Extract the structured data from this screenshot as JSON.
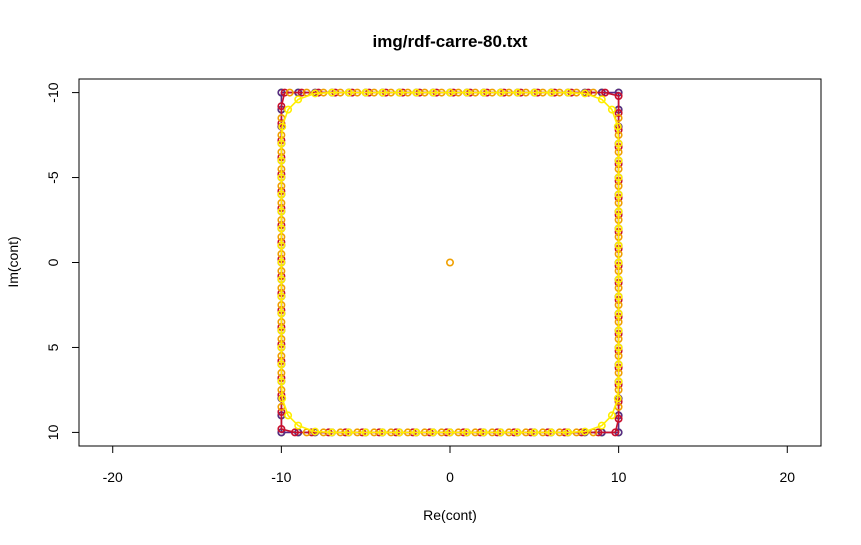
{
  "chart_data": {
    "type": "scatter",
    "title": "img/rdf-carre-80.txt",
    "xlabel": "Re(cont)",
    "ylabel": "Im(cont)",
    "xlim": [
      -22,
      22
    ],
    "ylim": [
      -10.8,
      10.8
    ],
    "y_axis_inverted": true,
    "x_ticks": [
      -20,
      -10,
      0,
      10,
      20
    ],
    "x_tick_labels": [
      "-20",
      "-10",
      "0",
      "10",
      "20"
    ],
    "y_ticks": [
      -10,
      -5,
      0,
      5,
      10
    ],
    "y_tick_labels": [
      "-10",
      "-5",
      "0",
      "5",
      "10"
    ],
    "grid": false,
    "legend": "none",
    "series": [
      {
        "color": "#2ca02c",
        "style": "points",
        "points": [
          [
            -10,
            -10
          ],
          [
            -10,
            10
          ],
          [
            10,
            -10
          ],
          [
            10,
            10
          ],
          [
            -10,
            -9
          ],
          [
            10,
            -9
          ],
          [
            -10,
            9
          ],
          [
            10,
            9
          ],
          [
            -9,
            -10
          ],
          [
            9,
            -10
          ],
          [
            -9,
            10
          ],
          [
            9,
            10
          ]
        ]
      },
      {
        "color": "#5b2a86",
        "style": "points+line",
        "points": [
          [
            -10,
            -10
          ],
          [
            -9,
            -10
          ],
          [
            -8,
            -10
          ],
          [
            -7,
            -10
          ],
          [
            -6,
            -10
          ],
          [
            -5,
            -10
          ],
          [
            -4,
            -10
          ],
          [
            -3,
            -10
          ],
          [
            -2,
            -10
          ],
          [
            -1,
            -10
          ],
          [
            0,
            -10
          ],
          [
            1,
            -10
          ],
          [
            2,
            -10
          ],
          [
            3,
            -10
          ],
          [
            4,
            -10
          ],
          [
            5,
            -10
          ],
          [
            6,
            -10
          ],
          [
            7,
            -10
          ],
          [
            8,
            -10
          ],
          [
            9,
            -10
          ],
          [
            10,
            -10
          ],
          [
            10,
            -9
          ],
          [
            10,
            -8
          ],
          [
            10,
            -7
          ],
          [
            10,
            -6
          ],
          [
            10,
            -5
          ],
          [
            10,
            -4
          ],
          [
            10,
            -3
          ],
          [
            10,
            -2
          ],
          [
            10,
            -1
          ],
          [
            10,
            0
          ],
          [
            10,
            1
          ],
          [
            10,
            2
          ],
          [
            10,
            3
          ],
          [
            10,
            4
          ],
          [
            10,
            5
          ],
          [
            10,
            6
          ],
          [
            10,
            7
          ],
          [
            10,
            8
          ],
          [
            10,
            9
          ],
          [
            10,
            10
          ],
          [
            9,
            10
          ],
          [
            8,
            10
          ],
          [
            7,
            10
          ],
          [
            6,
            10
          ],
          [
            5,
            10
          ],
          [
            4,
            10
          ],
          [
            3,
            10
          ],
          [
            2,
            10
          ],
          [
            1,
            10
          ],
          [
            0,
            10
          ],
          [
            -1,
            10
          ],
          [
            -2,
            10
          ],
          [
            -3,
            10
          ],
          [
            -4,
            10
          ],
          [
            -5,
            10
          ],
          [
            -6,
            10
          ],
          [
            -7,
            10
          ],
          [
            -8,
            10
          ],
          [
            -9,
            10
          ],
          [
            -10,
            10
          ],
          [
            -10,
            9
          ],
          [
            -10,
            8
          ],
          [
            -10,
            7
          ],
          [
            -10,
            6
          ],
          [
            -10,
            5
          ],
          [
            -10,
            4
          ],
          [
            -10,
            3
          ],
          [
            -10,
            2
          ],
          [
            -10,
            1
          ],
          [
            -10,
            0
          ],
          [
            -10,
            -1
          ],
          [
            -10,
            -2
          ],
          [
            -10,
            -3
          ],
          [
            -10,
            -4
          ],
          [
            -10,
            -5
          ],
          [
            -10,
            -6
          ],
          [
            -10,
            -7
          ],
          [
            -10,
            -8
          ],
          [
            -10,
            -9
          ]
        ]
      },
      {
        "color": "#c8102e",
        "style": "points+line",
        "points": [
          [
            -9.8,
            -10
          ],
          [
            -8.8,
            -10
          ],
          [
            -7.8,
            -10
          ],
          [
            -6.8,
            -10
          ],
          [
            -5.8,
            -10
          ],
          [
            -4.8,
            -10
          ],
          [
            -3.8,
            -10
          ],
          [
            -2.8,
            -10
          ],
          [
            -1.8,
            -10
          ],
          [
            -0.8,
            -10
          ],
          [
            0.2,
            -10
          ],
          [
            1.2,
            -10
          ],
          [
            2.2,
            -10
          ],
          [
            3.2,
            -10
          ],
          [
            4.2,
            -10
          ],
          [
            5.2,
            -10
          ],
          [
            6.2,
            -10
          ],
          [
            7.2,
            -10
          ],
          [
            8.2,
            -10
          ],
          [
            9.2,
            -10
          ],
          [
            10,
            -9.8
          ],
          [
            10,
            -8.8
          ],
          [
            10,
            -7.8
          ],
          [
            10,
            -6.8
          ],
          [
            10,
            -5.8
          ],
          [
            10,
            -4.8
          ],
          [
            10,
            -3.8
          ],
          [
            10,
            -2.8
          ],
          [
            10,
            -1.8
          ],
          [
            10,
            -0.8
          ],
          [
            10,
            0.2
          ],
          [
            10,
            1.2
          ],
          [
            10,
            2.2
          ],
          [
            10,
            3.2
          ],
          [
            10,
            4.2
          ],
          [
            10,
            5.2
          ],
          [
            10,
            6.2
          ],
          [
            10,
            7.2
          ],
          [
            10,
            8.2
          ],
          [
            10,
            9.2
          ],
          [
            9.8,
            10
          ],
          [
            8.8,
            10
          ],
          [
            7.8,
            10
          ],
          [
            6.8,
            10
          ],
          [
            5.8,
            10
          ],
          [
            4.8,
            10
          ],
          [
            3.8,
            10
          ],
          [
            2.8,
            10
          ],
          [
            1.8,
            10
          ],
          [
            0.8,
            10
          ],
          [
            -0.2,
            10
          ],
          [
            -1.2,
            10
          ],
          [
            -2.2,
            10
          ],
          [
            -3.2,
            10
          ],
          [
            -4.2,
            10
          ],
          [
            -5.2,
            10
          ],
          [
            -6.2,
            10
          ],
          [
            -7.2,
            10
          ],
          [
            -8.2,
            10
          ],
          [
            -9.2,
            10
          ],
          [
            -10,
            9.8
          ],
          [
            -10,
            8.8
          ],
          [
            -10,
            7.8
          ],
          [
            -10,
            6.8
          ],
          [
            -10,
            5.8
          ],
          [
            -10,
            4.8
          ],
          [
            -10,
            3.8
          ],
          [
            -10,
            2.8
          ],
          [
            -10,
            1.8
          ],
          [
            -10,
            0.8
          ],
          [
            -10,
            -0.2
          ],
          [
            -10,
            -1.2
          ],
          [
            -10,
            -2.2
          ],
          [
            -10,
            -3.2
          ],
          [
            -10,
            -4.2
          ],
          [
            -10,
            -5.2
          ],
          [
            -10,
            -6.2
          ],
          [
            -10,
            -7.2
          ],
          [
            -10,
            -8.2
          ],
          [
            -10,
            -9.2
          ]
        ]
      },
      {
        "color": "#f0a000",
        "style": "points",
        "points": [
          [
            0,
            0
          ],
          [
            -9.5,
            -10
          ],
          [
            -8.5,
            -10
          ],
          [
            -7.5,
            -10
          ],
          [
            -6.5,
            -10
          ],
          [
            -5.5,
            -10
          ],
          [
            -4.5,
            -10
          ],
          [
            -3.5,
            -10
          ],
          [
            -2.5,
            -10
          ],
          [
            -1.5,
            -10
          ],
          [
            -0.5,
            -10
          ],
          [
            0.5,
            -10
          ],
          [
            1.5,
            -10
          ],
          [
            2.5,
            -10
          ],
          [
            3.5,
            -10
          ],
          [
            4.5,
            -10
          ],
          [
            5.5,
            -10
          ],
          [
            6.5,
            -10
          ],
          [
            7.5,
            -10
          ],
          [
            8.5,
            -10
          ],
          [
            10,
            -8.5
          ],
          [
            10,
            -7.5
          ],
          [
            10,
            -6.5
          ],
          [
            10,
            -5.5
          ],
          [
            10,
            -4.5
          ],
          [
            10,
            -3.5
          ],
          [
            10,
            -2.5
          ],
          [
            10,
            -1.5
          ],
          [
            10,
            -0.5
          ],
          [
            10,
            0.5
          ],
          [
            10,
            1.5
          ],
          [
            10,
            2.5
          ],
          [
            10,
            3.5
          ],
          [
            10,
            4.5
          ],
          [
            10,
            5.5
          ],
          [
            10,
            6.5
          ],
          [
            10,
            7.5
          ],
          [
            10,
            8.5
          ],
          [
            8.5,
            10
          ],
          [
            7.5,
            10
          ],
          [
            6.5,
            10
          ],
          [
            5.5,
            10
          ],
          [
            4.5,
            10
          ],
          [
            3.5,
            10
          ],
          [
            2.5,
            10
          ],
          [
            1.5,
            10
          ],
          [
            0.5,
            10
          ],
          [
            -0.5,
            10
          ],
          [
            -1.5,
            10
          ],
          [
            -2.5,
            10
          ],
          [
            -3.5,
            10
          ],
          [
            -4.5,
            10
          ],
          [
            -5.5,
            10
          ],
          [
            -6.5,
            10
          ],
          [
            -7.5,
            10
          ],
          [
            -8.5,
            10
          ],
          [
            -10,
            8.5
          ],
          [
            -10,
            7.5
          ],
          [
            -10,
            6.5
          ],
          [
            -10,
            5.5
          ],
          [
            -10,
            4.5
          ],
          [
            -10,
            3.5
          ],
          [
            -10,
            2.5
          ],
          [
            -10,
            1.5
          ],
          [
            -10,
            0.5
          ],
          [
            -10,
            -0.5
          ],
          [
            -10,
            -1.5
          ],
          [
            -10,
            -2.5
          ],
          [
            -10,
            -3.5
          ],
          [
            -10,
            -4.5
          ],
          [
            -10,
            -5.5
          ],
          [
            -10,
            -6.5
          ],
          [
            -10,
            -7.5
          ],
          [
            -10,
            -8.5
          ]
        ]
      },
      {
        "color": "#ffee00",
        "style": "points+line",
        "points": [
          [
            -9,
            -9.6
          ],
          [
            -8,
            -9.95
          ],
          [
            -7,
            -10
          ],
          [
            -6,
            -10
          ],
          [
            -5,
            -10
          ],
          [
            -4,
            -10
          ],
          [
            -3,
            -10
          ],
          [
            -2,
            -10
          ],
          [
            -1,
            -10
          ],
          [
            0,
            -10
          ],
          [
            1,
            -10
          ],
          [
            2,
            -10
          ],
          [
            3,
            -10
          ],
          [
            4,
            -10
          ],
          [
            5,
            -10
          ],
          [
            6,
            -10
          ],
          [
            7,
            -10
          ],
          [
            8,
            -9.95
          ],
          [
            9,
            -9.6
          ],
          [
            9.6,
            -9
          ],
          [
            9.95,
            -8
          ],
          [
            10,
            -7
          ],
          [
            10,
            -6
          ],
          [
            10,
            -5
          ],
          [
            10,
            -4
          ],
          [
            10,
            -3
          ],
          [
            10,
            -2
          ],
          [
            10,
            -1
          ],
          [
            10,
            0
          ],
          [
            10,
            1
          ],
          [
            10,
            2
          ],
          [
            10,
            3
          ],
          [
            10,
            4
          ],
          [
            10,
            5
          ],
          [
            10,
            6
          ],
          [
            10,
            7
          ],
          [
            9.95,
            8
          ],
          [
            9.6,
            9
          ],
          [
            9,
            9.6
          ],
          [
            8,
            9.95
          ],
          [
            7,
            10
          ],
          [
            6,
            10
          ],
          [
            5,
            10
          ],
          [
            4,
            10
          ],
          [
            3,
            10
          ],
          [
            2,
            10
          ],
          [
            1,
            10
          ],
          [
            0,
            10
          ],
          [
            -1,
            10
          ],
          [
            -2,
            10
          ],
          [
            -3,
            10
          ],
          [
            -4,
            10
          ],
          [
            -5,
            10
          ],
          [
            -6,
            10
          ],
          [
            -7,
            10
          ],
          [
            -8,
            9.95
          ],
          [
            -9,
            9.6
          ],
          [
            -9.6,
            9
          ],
          [
            -9.95,
            8
          ],
          [
            -10,
            7
          ],
          [
            -10,
            6
          ],
          [
            -10,
            5
          ],
          [
            -10,
            4
          ],
          [
            -10,
            3
          ],
          [
            -10,
            2
          ],
          [
            -10,
            1
          ],
          [
            -10,
            0
          ],
          [
            -10,
            -1
          ],
          [
            -10,
            -2
          ],
          [
            -10,
            -3
          ],
          [
            -10,
            -4
          ],
          [
            -10,
            -5
          ],
          [
            -10,
            -6
          ],
          [
            -10,
            -7
          ],
          [
            -9.95,
            -8
          ],
          [
            -9.6,
            -9
          ]
        ]
      }
    ]
  }
}
